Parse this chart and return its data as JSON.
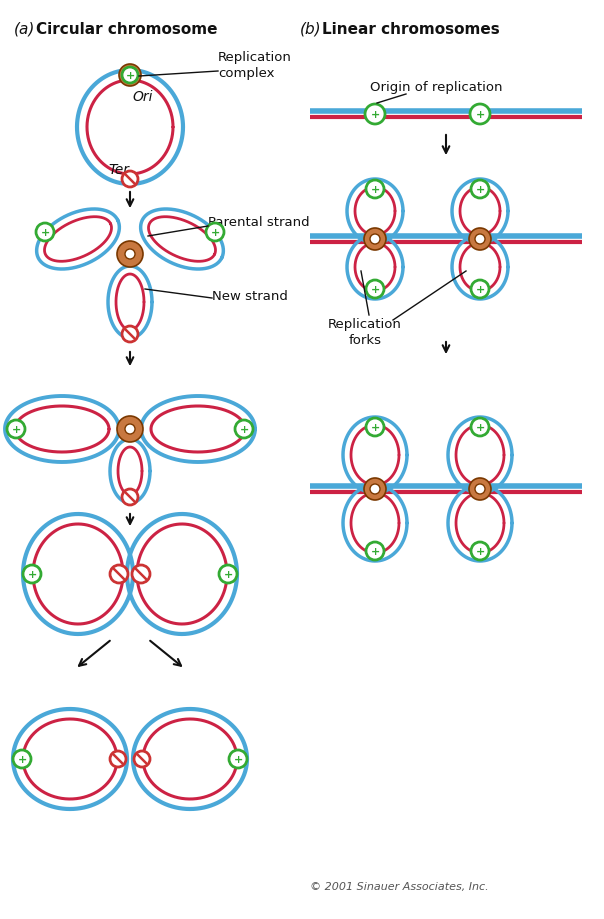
{
  "bg": "#ffffff",
  "blue": "#4aa8d8",
  "red": "#cc2244",
  "brown": "#c87840",
  "green": "#33aa33",
  "red_ter": "#cc3333",
  "black": "#111111",
  "title_a_italic": "(a)",
  "title_a_bold": "Circular chromosome",
  "title_b_italic": "(b)",
  "title_b_bold": "Linear chromosomes",
  "lbl_rep_complex": "Replication\ncomplex",
  "lbl_ori": "Ori",
  "lbl_ter": "Ter",
  "lbl_parental": "Parental strand",
  "lbl_new": "New strand",
  "lbl_origin": "Origin of replication",
  "lbl_forks": "Replication\nforks",
  "copyright": "© 2001 Sinauer Associates, Inc."
}
